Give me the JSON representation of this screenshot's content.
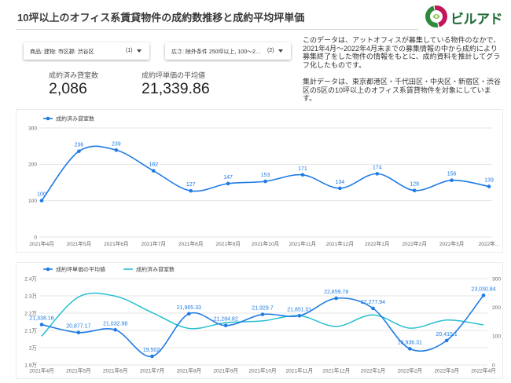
{
  "header": {
    "title": "10坪以上のオフィス系賃貸物件の成約数推移と成約平均坪単価"
  },
  "logo": {
    "text": "ビルアド",
    "icon": "biruado-logo-icon",
    "colors": {
      "magenta": "#c2185b",
      "green": "#2e8b3d"
    }
  },
  "filters": [
    {
      "label": "商品: 建物: 市区郡: 渋谷区",
      "count": "(1)",
      "icon": "dropdown-arrow-icon"
    },
    {
      "label": "広さ: 除外条件 250坪以上, 100～2…",
      "count": "(2)",
      "icon": "dropdown-arrow-icon"
    }
  ],
  "scorecards": [
    {
      "label": "成約済み貸室数",
      "value": "2,086"
    },
    {
      "label": "成約坪単価の平均値",
      "value": "21,339.86"
    }
  ],
  "description": {
    "paragraphs": [
      "このデータは、アットオフィスが募集している物件のなかで、2021年4月～2022年4月末までの募集情報の中から成約により募集終了をした物件の情報をもとに、成約資料を推計してグラフ化したものです。",
      "集計データは、東京都港区・千代田区・中央区・新宿区・渋谷区の5区の10坪以上のオフィス系賃貸物件を対象にしています。"
    ]
  },
  "colors": {
    "series_blue": "#1e7ae6",
    "series_teal": "#26bfd0",
    "grid": "#e6e6e6"
  },
  "chart_data": [
    {
      "type": "line",
      "legend": "top-left",
      "grid": true,
      "categories": [
        "2021年4月",
        "2021年5月",
        "2021年6月",
        "2021年7月",
        "2021年8月",
        "2021年9月",
        "2021年10月",
        "2021年11月",
        "2021年12月",
        "2022年1月",
        "2022年2月",
        "2022年3月",
        "2022年..."
      ],
      "ylim": [
        0,
        300
      ],
      "yticks": [
        0,
        100,
        200,
        300
      ],
      "series": [
        {
          "name": "成約済み貸室数",
          "color": "#1e7ae6",
          "values": [
            100,
            236,
            239,
            182,
            127,
            147,
            153,
            171,
            134,
            174,
            128,
            156,
            139
          ]
        }
      ]
    },
    {
      "type": "line",
      "legend": "top-left",
      "grid": true,
      "categories": [
        "2021年4月",
        "2021年5月",
        "2021年6月",
        "2021年7月",
        "2021年8月",
        "2021年9月",
        "2021年10月",
        "2021年11月",
        "2021年12月",
        "2022年1月",
        "2022年2月",
        "2022年3月",
        "2022年4月"
      ],
      "ylim_left": [
        19000,
        24000
      ],
      "yticks_left": [
        19000,
        20000,
        21000,
        22000,
        23000,
        24000
      ],
      "ytick_labels_left": [
        "1.9万",
        "2万",
        "2.1万",
        "2.2万",
        "2.3万",
        "2.4万"
      ],
      "ylim_right": [
        0,
        300
      ],
      "yticks_right": [
        0,
        100,
        200,
        300
      ],
      "series": [
        {
          "name": "成約坪単価の平均値",
          "axis": "left",
          "color": "#1e7ae6",
          "values": [
            21338.16,
            20877.17,
            21032.98,
            19502,
            21965.33,
            21284.82,
            21929.7,
            21851.01,
            22859.78,
            22277.94,
            19936.31,
            20415.1,
            23030.84
          ],
          "labels": [
            "21,338.16",
            "20,877.17",
            "21,032.98",
            "19,502.",
            "21,965.33",
            "21,284.82",
            "21,929.7",
            "21,851.01",
            "22,859.78",
            "22,277.94",
            "19,936.31",
            "20,415.1",
            "23,030.84"
          ]
        },
        {
          "name": "成約済み貸室数",
          "axis": "right",
          "color": "#26bfd0",
          "values": [
            100,
            236,
            239,
            182,
            127,
            147,
            153,
            171,
            134,
            174,
            128,
            156,
            139
          ]
        }
      ]
    }
  ]
}
